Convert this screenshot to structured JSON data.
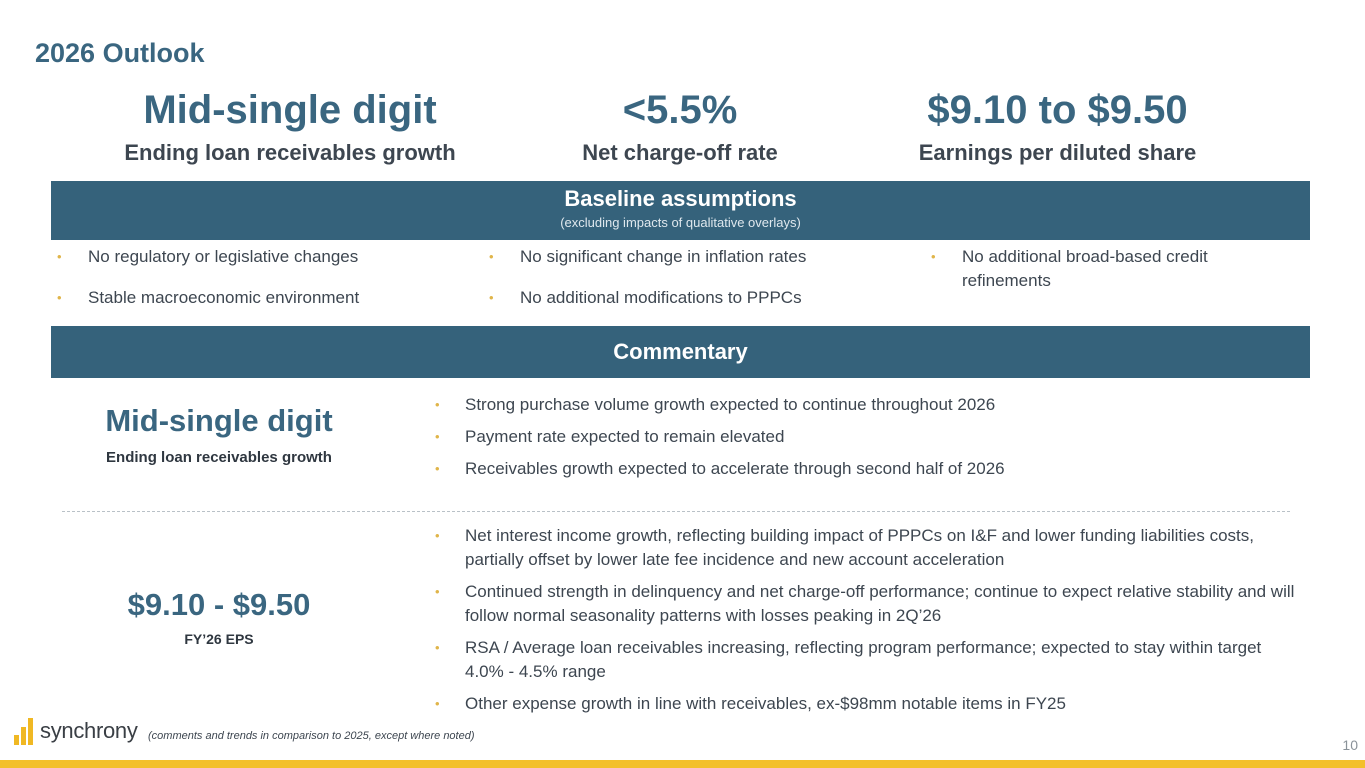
{
  "title": "2026 Outlook",
  "kpis": [
    {
      "value": "Mid-single digit",
      "label": "Ending loan receivables growth"
    },
    {
      "value": "<5.5%",
      "label": "Net charge-off rate"
    },
    {
      "value": "$9.10 to $9.50",
      "label": "Earnings per diluted share"
    }
  ],
  "baseline": {
    "heading": "Baseline assumptions",
    "subheading": "(excluding impacts of qualitative overlays)",
    "items": [
      "No regulatory or legislative changes",
      "Stable macroeconomic environment",
      "No significant change in inflation rates",
      "No additional modifications to PPPCs",
      "No additional broad-based credit refinements"
    ]
  },
  "commentary": {
    "heading": "Commentary",
    "section1": {
      "value": "Mid-single digit",
      "label": "Ending loan receivables growth",
      "bullets": [
        "Strong purchase volume growth expected to continue throughout 2026",
        "Payment rate expected to remain elevated",
        "Receivables growth expected to accelerate through second half of 2026"
      ]
    },
    "section2": {
      "value": "$9.10 - $9.50",
      "label": "FY’26 EPS",
      "bullets": [
        "Net interest income growth, reflecting building impact of PPPCs on I&F and lower funding liabilities costs, partially offset by lower late fee incidence and new account acceleration",
        "Continued strength in delinquency and net charge-off performance; continue to expect relative stability and will follow normal seasonality patterns with losses peaking in 2Q’26",
        "RSA / Average loan receivables increasing, reflecting program performance; expected to stay within target 4.0% - 4.5% range",
        "Other expense growth in line with receivables, ex-$98mm notable items in FY25"
      ]
    }
  },
  "footer": {
    "logo_text": "synchrony",
    "note": "(comments and trends in comparison to 2025, except where noted)",
    "page_number": "10"
  },
  "colors": {
    "accent": "#3a6680",
    "band": "#35627b",
    "bullet": "#e0b54a",
    "brand_yellow": "#f3c02c"
  }
}
